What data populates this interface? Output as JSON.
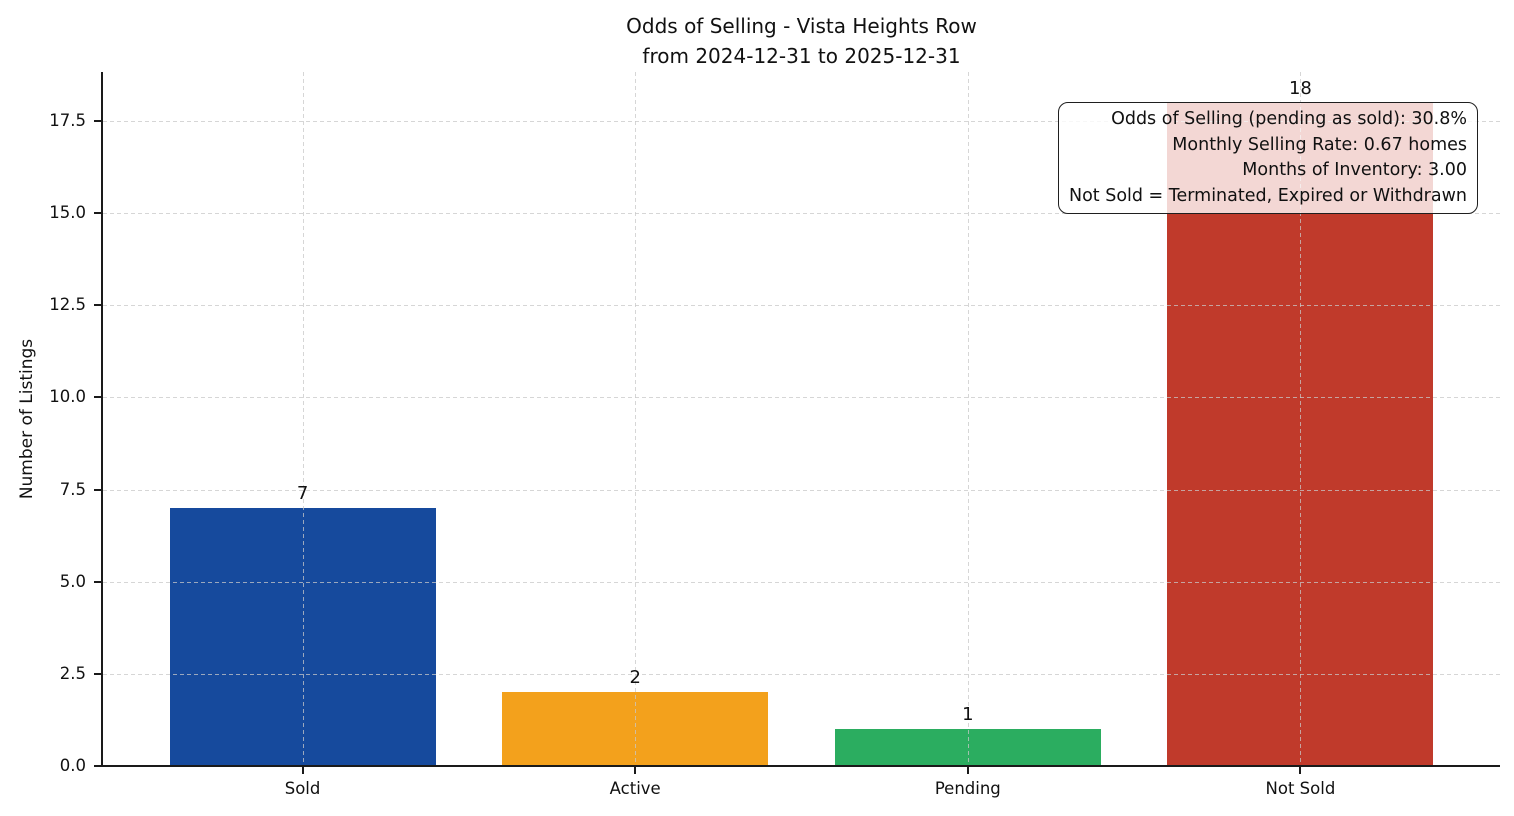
{
  "chart_data": {
    "type": "bar",
    "title": "Odds of Selling - Vista Heights Row",
    "subtitle": "from 2024-12-31 to 2025-12-31",
    "ylabel": "Number of Listings",
    "xlabel": "",
    "categories": [
      "Sold",
      "Active",
      "Pending",
      "Not Sold"
    ],
    "values": [
      7,
      2,
      1,
      18
    ],
    "value_labels": [
      "7",
      "2",
      "1",
      "18"
    ],
    "bar_colors": [
      "#164a9d",
      "#f3a11c",
      "#2bad60",
      "#c03a2b"
    ],
    "ylim": [
      0,
      18.83
    ],
    "yticks": [
      0,
      2.5,
      5,
      7.5,
      10,
      12.5,
      15,
      17.5
    ],
    "ytick_labels": [
      "0.0",
      "2.5",
      "5.0",
      "7.5",
      "10.0",
      "12.5",
      "15.0",
      "17.5"
    ],
    "grid": true,
    "grid_style": "dashed",
    "legend": "none",
    "annotation": {
      "lines": [
        "Odds of Selling (pending as sold): 30.8%",
        "Monthly Selling Rate: 0.67 homes",
        "Months of Inventory: 3.00",
        "Not Sold = Terminated, Expired or Withdrawn"
      ]
    }
  }
}
